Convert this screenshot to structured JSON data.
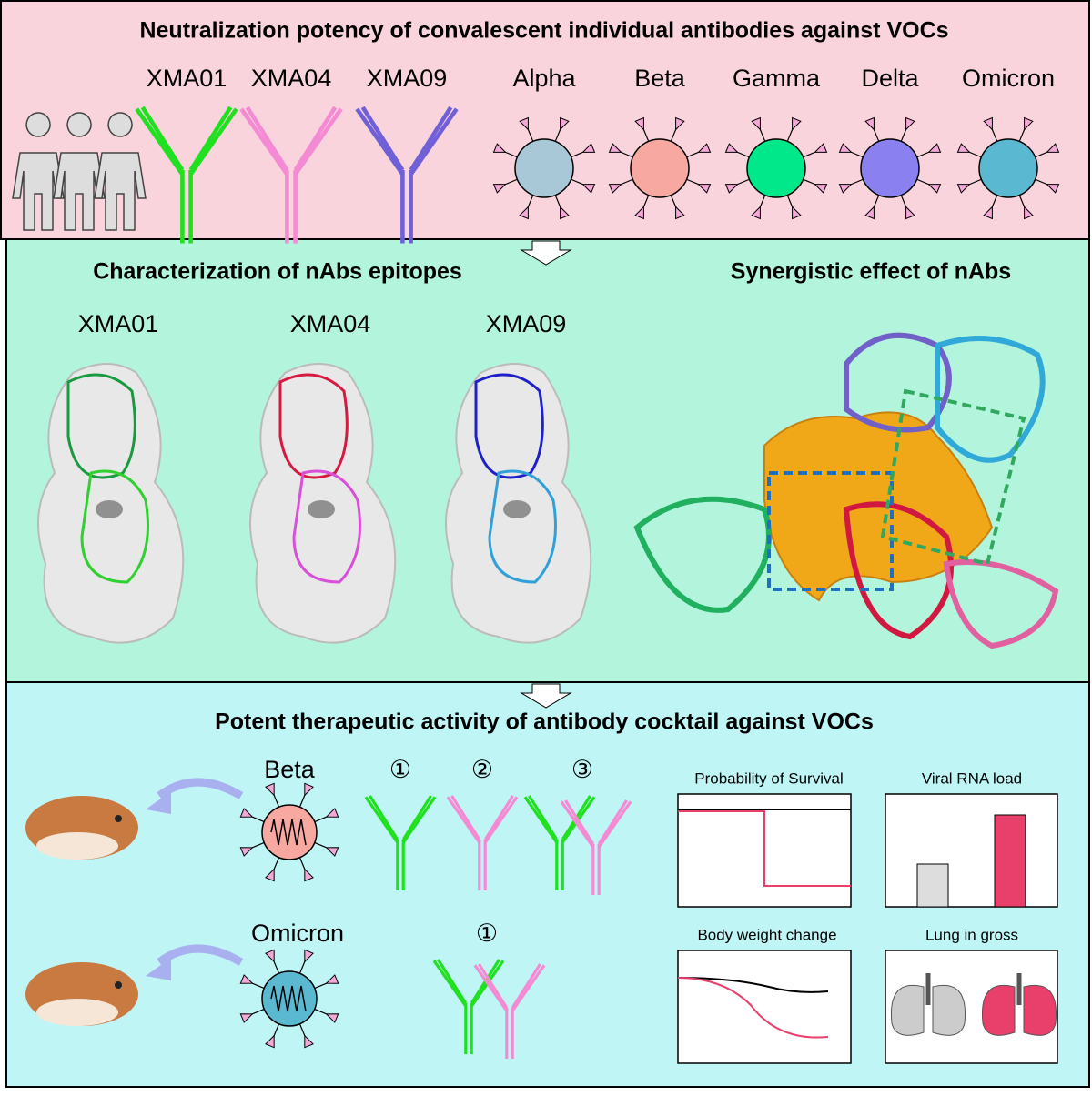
{
  "panel1": {
    "title": "Neutralization potency of convalescent individual antibodies against VOCs",
    "antibodies": [
      "XMA01",
      "XMA04",
      "XMA09"
    ],
    "variants": [
      "Alpha",
      "Beta",
      "Gamma",
      "Delta",
      "Omicron"
    ]
  },
  "panel2": {
    "left_title": "Characterization of nAbs epitopes",
    "right_title": "Synergistic effect of nAbs",
    "structures": [
      "XMA01",
      "XMA04",
      "XMA09"
    ]
  },
  "panel3": {
    "title": "Potent therapeutic activity of antibody cocktail against VOCs",
    "rows": [
      {
        "variant": "Beta",
        "treatments": [
          "①",
          "②",
          "③"
        ]
      },
      {
        "variant": "Omicron",
        "treatments": [
          "①"
        ]
      }
    ],
    "plots": [
      "Probability of  Survival",
      "Viral RNA load",
      "Body weight change",
      "Lung in gross"
    ]
  }
}
